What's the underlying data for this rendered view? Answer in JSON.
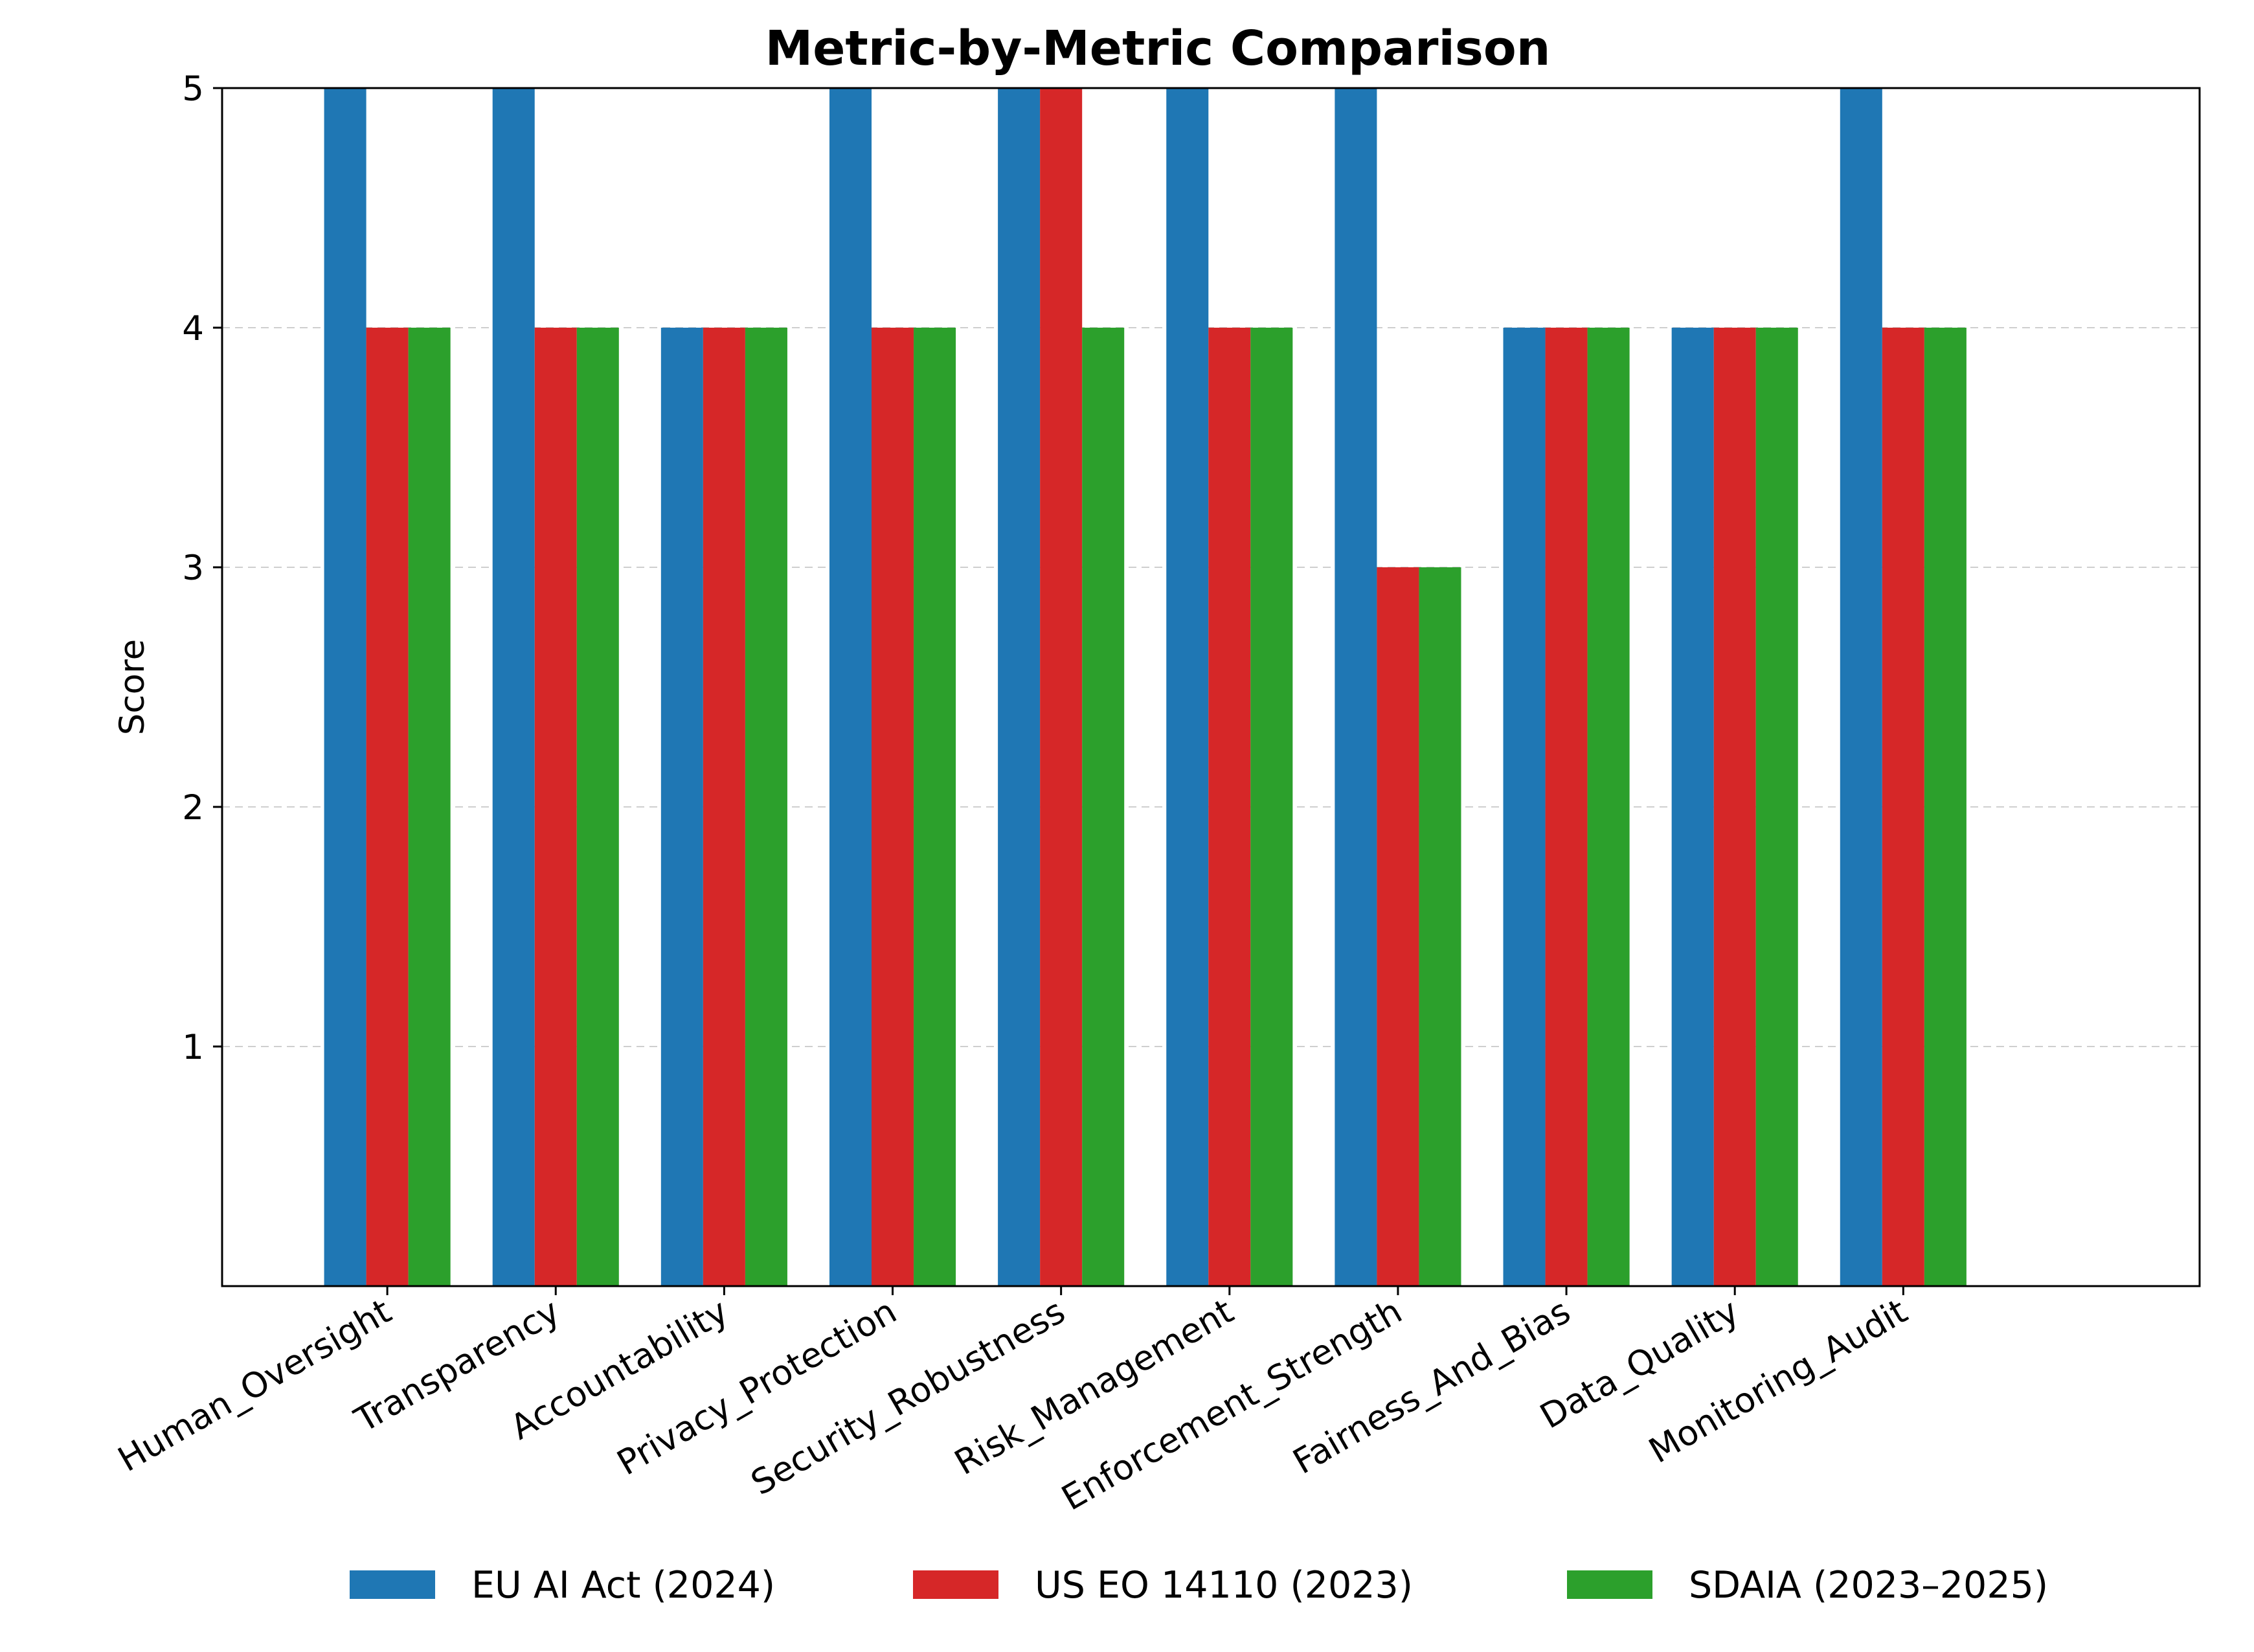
{
  "chart_data": {
    "type": "bar",
    "title": "Metric-by-Metric Comparison",
    "xlabel": "",
    "ylabel": "Score",
    "ylim": [
      0,
      5
    ],
    "yticks": [
      1,
      2,
      3,
      4,
      5
    ],
    "grid": "horizontal dashed",
    "legend_position": "bottom-center",
    "categories": [
      "Human_Oversight",
      "Transparency",
      "Accountability",
      "Privacy_Protection",
      "Security_Robustness",
      "Risk_Management",
      "Enforcement_Strength",
      "Fairness_And_Bias",
      "Data_Quality",
      "Monitoring_Audit"
    ],
    "series": [
      {
        "name": "EU AI Act (2024)",
        "color": "#1f77b4",
        "values": [
          5,
          5,
          4,
          5,
          5,
          5,
          5,
          4,
          4,
          5
        ]
      },
      {
        "name": "US EO 14110 (2023)",
        "color": "#d62728",
        "values": [
          4,
          4,
          4,
          4,
          5,
          4,
          3,
          4,
          4,
          4
        ]
      },
      {
        "name": "SDAIA (2023–2025)",
        "color": "#2ca02c",
        "values": [
          4,
          4,
          4,
          4,
          4,
          4,
          3,
          4,
          4,
          4
        ]
      }
    ]
  }
}
